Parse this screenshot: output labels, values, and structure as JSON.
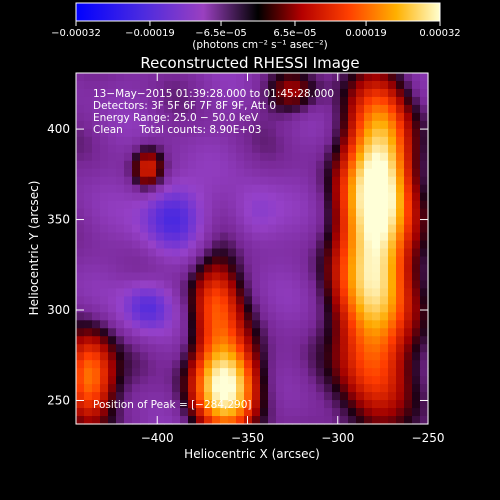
{
  "chart_data": {
    "type": "heatmap",
    "title": "Reconstructed RHESSI Image",
    "xlabel": "Heliocentric X (arcsec)",
    "ylabel": "Heliocentric Y (arcsec)",
    "xlim": [
      -445,
      -250
    ],
    "ylim": [
      237,
      431
    ],
    "x_ticks": [
      -400,
      -350,
      -300,
      -250
    ],
    "y_ticks": [
      250,
      300,
      350,
      400
    ],
    "x_tick_labels": [
      "−400",
      "−350",
      "−300",
      "−250"
    ],
    "y_tick_labels": [
      "250",
      "300",
      "350",
      "400"
    ],
    "colorbar": {
      "range": [
        -0.00032,
        0.00032
      ],
      "ticks": [
        -0.00032,
        -0.00019,
        -6.5e-05,
        6.5e-05,
        0.00019,
        0.00032
      ],
      "tick_labels": [
        "−0.00032",
        "−0.00019",
        "−6.5e−05",
        "6.5e−05",
        "0.00019",
        "0.00032"
      ],
      "unit_label": "(photons cm⁻² s⁻¹ asec⁻²)"
    },
    "annotations": [
      "13−May−2015 01:39:28.000 to 01:45:28.000",
      "Detectors: 3F 5F 6F 7F 8F 9F, Att 0",
      "Energy Range: 25.0 − 50.0 keV",
      "Clean     Total counts: 8.90E+03",
      "Position of Peak = [−284,290]"
    ],
    "peak_position": [
      -284,
      290
    ],
    "sources": [
      {
        "x": -280,
        "y": 320,
        "sx": 14,
        "sy": 55,
        "amp": 0.00034
      },
      {
        "x": -275,
        "y": 380,
        "sx": 12,
        "sy": 30,
        "amp": 0.00022
      },
      {
        "x": -362,
        "y": 258,
        "sx": 13,
        "sy": 18,
        "amp": 0.00036
      },
      {
        "x": -368,
        "y": 305,
        "sx": 10,
        "sy": 22,
        "amp": 0.00018
      },
      {
        "x": -438,
        "y": 262,
        "sx": 10,
        "sy": 18,
        "amp": 0.00026
      },
      {
        "x": -405,
        "y": 378,
        "sx": 6,
        "sy": 8,
        "amp": 0.00016
      },
      {
        "x": -325,
        "y": 420,
        "sx": 10,
        "sy": 8,
        "amp": 0.00012
      },
      {
        "x": -392,
        "y": 352,
        "sx": 12,
        "sy": 14,
        "amp": -0.00016
      },
      {
        "x": -405,
        "y": 302,
        "sx": 10,
        "sy": 10,
        "amp": -0.00014
      },
      {
        "x": -345,
        "y": 352,
        "sx": 10,
        "sy": 12,
        "amp": -8e-05
      }
    ],
    "colors": {
      "background": "#000000",
      "text": "#ffffff",
      "scale": [
        "#0000ff",
        "#5a2ad2",
        "#9a40c0",
        "#000000",
        "#b40000",
        "#ff4000",
        "#ffb000",
        "#ffffd0"
      ]
    }
  }
}
